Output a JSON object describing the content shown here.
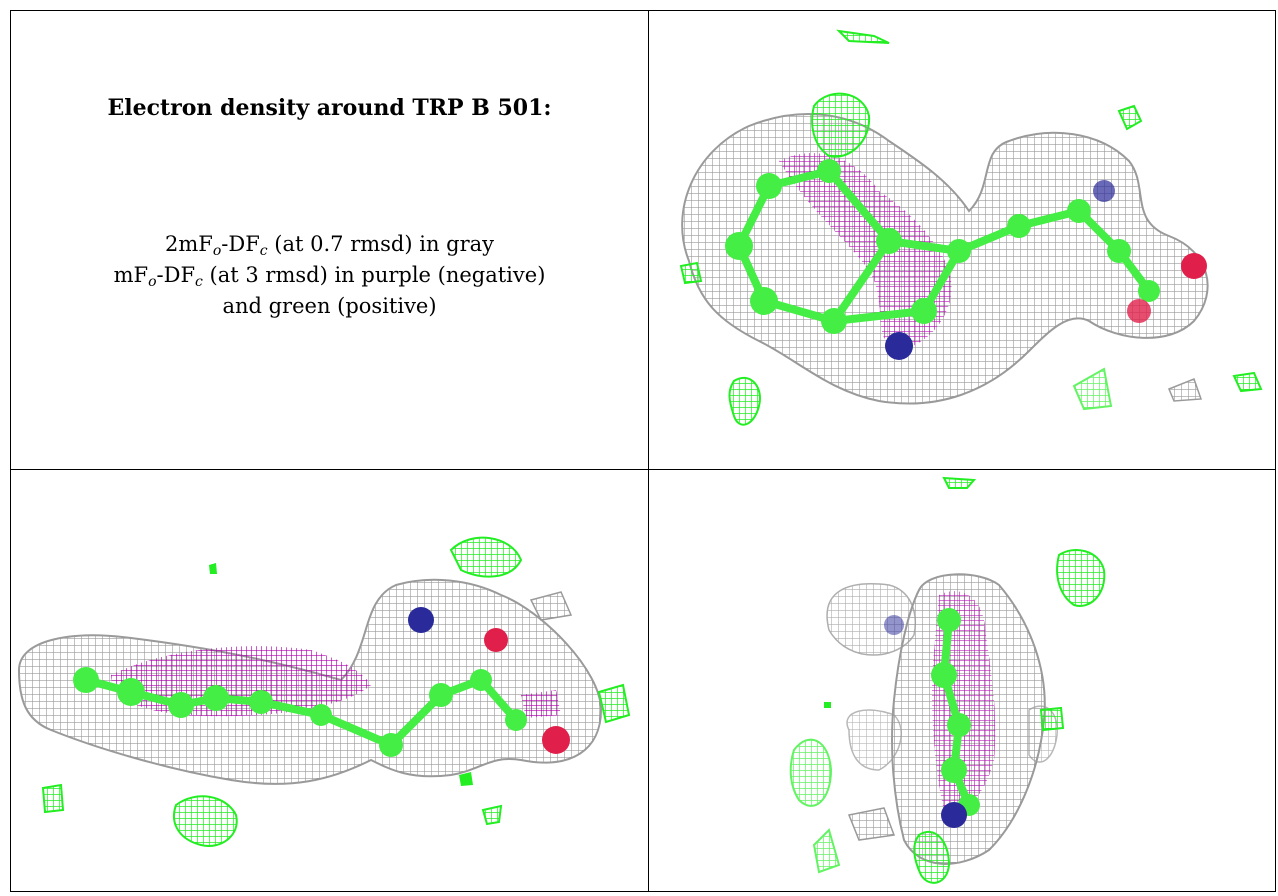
{
  "caption": {
    "title": "Electron density around TRP B 501:",
    "line1": {
      "prefix": "2mF",
      "sub1": "o",
      "mid": "-DF",
      "sub2": "c",
      "suffix": " (at 0.7 rmsd) in gray"
    },
    "line2": {
      "prefix": "mF",
      "sub1": "o",
      "mid": "-DF",
      "sub2": "c",
      "suffix": " (at 3 rmsd) in purple (negative)"
    },
    "line3": "and green (positive)"
  },
  "colors": {
    "density_2fofc": "#9a9a9a",
    "negative": "#b000b0",
    "positive": "#22ee22",
    "carbon": "#44ee44",
    "nitrogen": "#2a2a9a",
    "oxygen": "#e0204a"
  }
}
